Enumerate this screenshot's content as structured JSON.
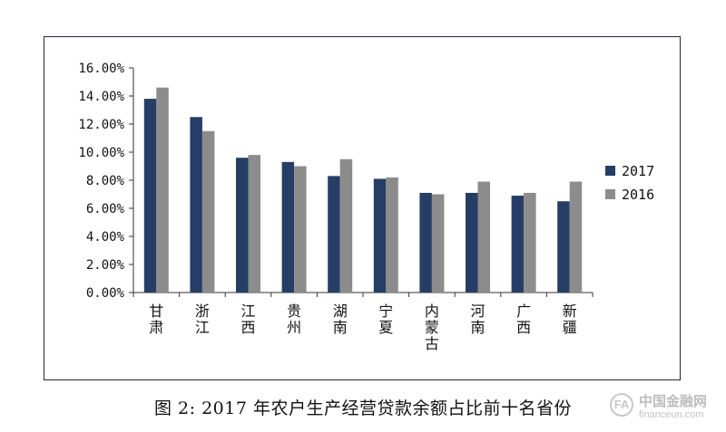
{
  "chart_data": {
    "type": "bar",
    "categories": [
      "甘肃",
      "浙江",
      "江西",
      "贵州",
      "湖南",
      "宁夏",
      "内蒙古",
      "河南",
      "广西",
      "新疆"
    ],
    "series": [
      {
        "name": "2017",
        "values": [
          13.8,
          12.5,
          9.6,
          9.3,
          8.3,
          8.1,
          7.1,
          7.1,
          6.9,
          6.5
        ],
        "color": "#263e66"
      },
      {
        "name": "2016",
        "values": [
          14.6,
          11.5,
          9.8,
          9.0,
          9.5,
          8.2,
          7.0,
          7.9,
          7.1,
          7.9
        ],
        "color": "#8c8c8c"
      }
    ],
    "ylim": [
      0,
      16
    ],
    "yticks": [
      "0.00%",
      "2.00%",
      "4.00%",
      "6.00%",
      "8.00%",
      "10.00%",
      "12.00%",
      "14.00%",
      "16.00%"
    ],
    "legend_position": "right",
    "grid": false
  },
  "caption": "图 2: 2017 年农户生产经营贷款余额占比前十名省份",
  "watermark": {
    "icon_text": "FA",
    "name": "中国金融网",
    "url": "financeun.com"
  }
}
